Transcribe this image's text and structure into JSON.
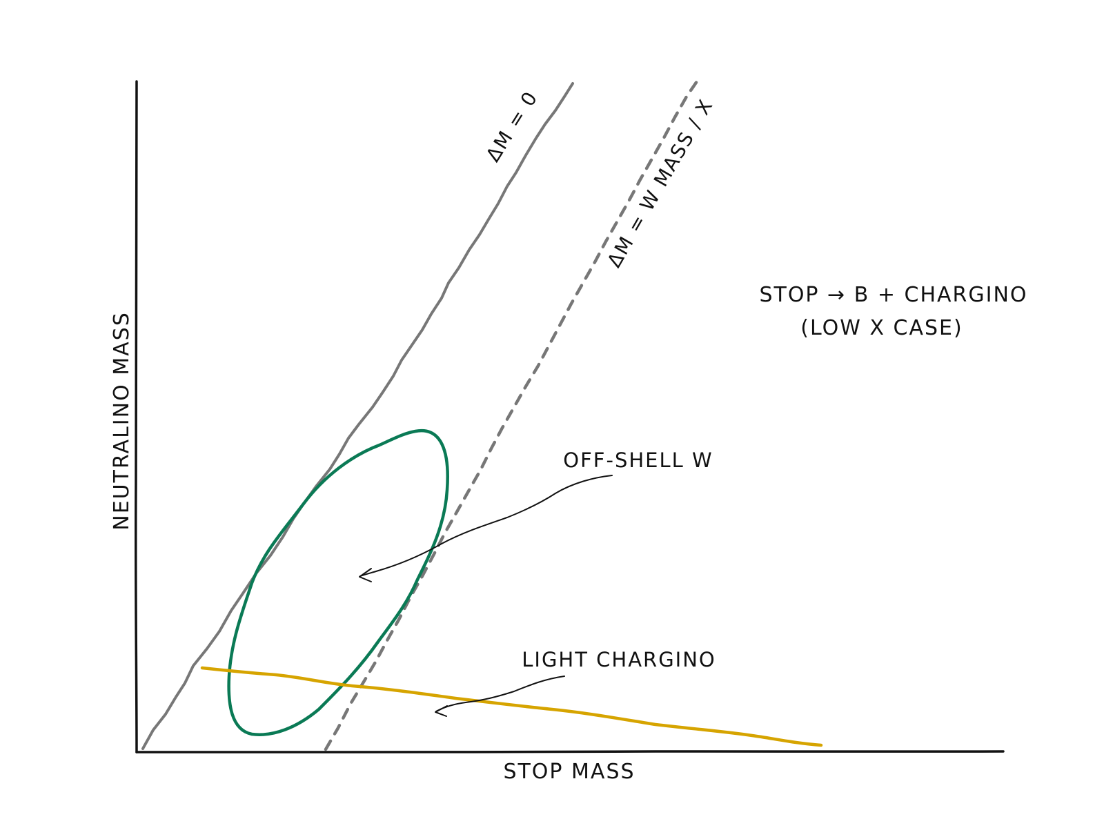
{
  "diagram": {
    "x_axis_label": "STOP MASS",
    "y_axis_label": "NEUTRALINO MASS",
    "title_line1": "STOP → B + CHARGINO",
    "title_line2": "(LOW X CASE)",
    "line_zero_label": "ΔM = 0",
    "line_w_label": "ΔM = W MASS / X",
    "off_shell_label": "OFF-SHELL W",
    "light_chargino_label": "LIGHT CHARGINO",
    "colors": {
      "axes": "#111111",
      "zero_line": "#777777",
      "w_line": "#777777",
      "off_shell_region": "#0a7a55",
      "light_chargino_band": "#d6a400",
      "annotation": "#111111"
    }
  }
}
